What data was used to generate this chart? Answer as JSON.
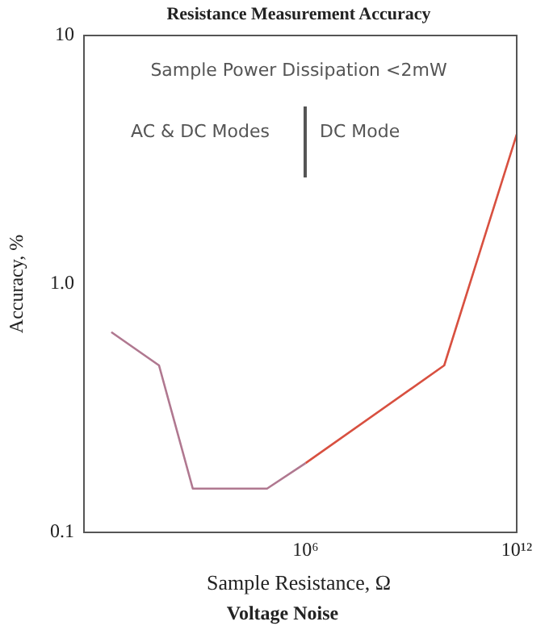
{
  "chart_data": {
    "type": "line",
    "title": "Resistance Measurement Accuracy",
    "xlabel": "Sample Resistance, Ω",
    "ylabel": "Accuracy, %",
    "annotations": [
      "Sample Power Dissipation <2mW",
      "AC & DC Modes",
      "DC Mode",
      "Voltage Noise"
    ],
    "log": "xy",
    "grid": false,
    "legend": false,
    "marker": "none",
    "line_style": "solid",
    "xlim": [
      0.5,
      1000000000000.0
    ],
    "xticks": [
      {
        "value": 1000000,
        "label": "10⁶"
      },
      {
        "value": 1000000000000.0,
        "label": "10¹²"
      }
    ],
    "ylim": [
      0.1,
      10
    ],
    "yticks": [
      0.1,
      {
        "value": 1,
        "label": "1.0"
      },
      10
    ],
    "series": [
      {
        "color": "#b07890",
        "x": [
          3,
          68,
          620,
          80000,
          1000000
        ],
        "values": [
          0.64,
          0.47,
          0.15,
          0.15,
          0.19
        ]
      },
      {
        "color": "#d85040",
        "x": [
          1000000,
          8700000000,
          1000000000000.0
        ],
        "values": [
          0.19,
          0.47,
          4.0
        ]
      }
    ]
  }
}
